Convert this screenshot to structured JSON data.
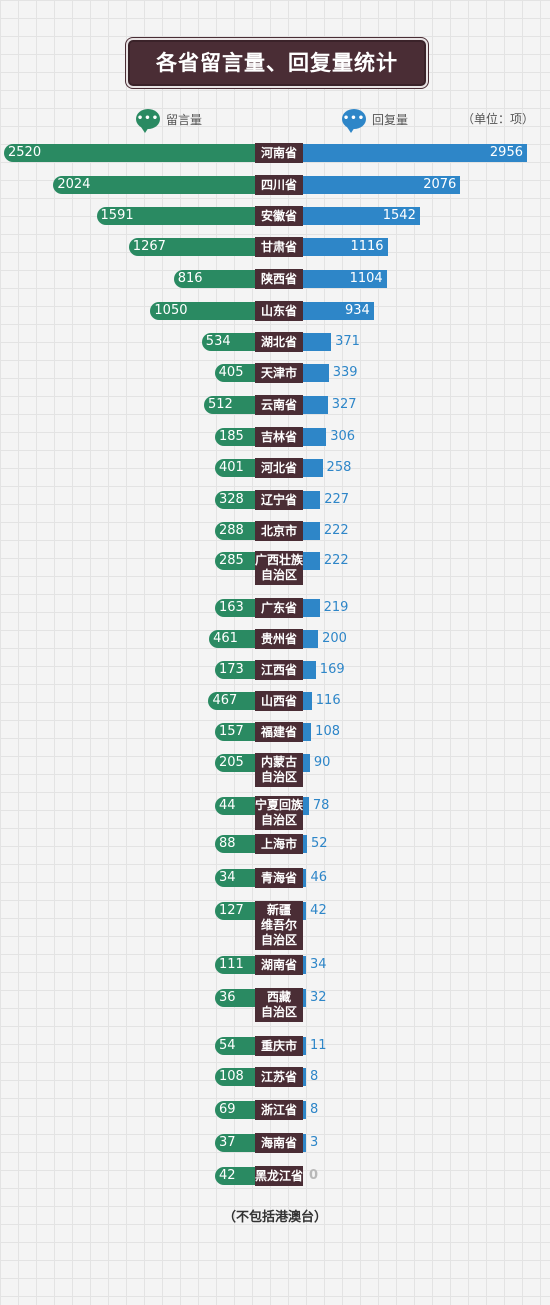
{
  "title": "各省留言量、回复量统计",
  "legend": {
    "left_icon": "chat-bubble-icon",
    "left_label": "留言量",
    "right_icon": "chat-bubble-icon",
    "right_label": "回复量",
    "bubble_text": "•••"
  },
  "unit": "（单位：项）",
  "footnote": "（不包括港澳台）",
  "colors": {
    "messages": "#2a8a62",
    "replies": "#2e86c8",
    "province_label": "#4a2d35",
    "title_bg": "#4a2d35"
  },
  "chart_data": {
    "type": "bar",
    "orientation": "horizontal-butterfly",
    "categories": [
      "河南省",
      "四川省",
      "安徽省",
      "甘肃省",
      "陕西省",
      "山东省",
      "湖北省",
      "天津市",
      "云南省",
      "吉林省",
      "河北省",
      "辽宁省",
      "北京市",
      "广西壮族\n自治区",
      "广东省",
      "贵州省",
      "江西省",
      "山西省",
      "福建省",
      "内蒙古\n自治区",
      "宁夏回族\n自治区",
      "上海市",
      "青海省",
      "新疆\n维吾尔\n自治区",
      "湖南省",
      "西藏\n自治区",
      "重庆市",
      "江苏省",
      "浙江省",
      "海南省",
      "黑龙江省"
    ],
    "series": [
      {
        "name": "留言量",
        "values": [
          2520,
          2024,
          1591,
          1267,
          816,
          1050,
          534,
          405,
          512,
          185,
          401,
          328,
          288,
          285,
          163,
          461,
          173,
          467,
          157,
          205,
          44,
          88,
          34,
          127,
          111,
          36,
          54,
          108,
          69,
          37,
          42
        ]
      },
      {
        "name": "回复量",
        "values": [
          2956,
          2076,
          1542,
          1116,
          1104,
          934,
          371,
          339,
          327,
          306,
          258,
          227,
          222,
          222,
          219,
          200,
          169,
          116,
          108,
          90,
          78,
          52,
          46,
          42,
          34,
          32,
          11,
          8,
          8,
          3,
          0
        ]
      }
    ]
  }
}
